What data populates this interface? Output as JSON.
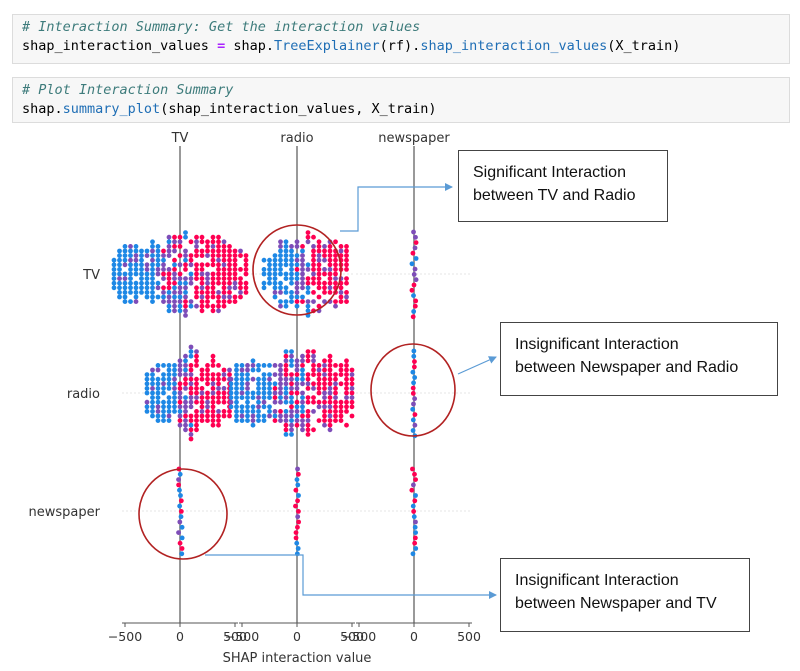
{
  "cells": [
    {
      "comment": "# Interaction Summary: Get the interaction values",
      "code": {
        "var": "shap_interaction_values",
        "op": "=",
        "mod": "shap.",
        "cls": "TreeExplainer",
        "arg1": "(rf).",
        "fn": "shap_interaction_values",
        "arg2": "(X_train)"
      }
    },
    {
      "comment": "# Plot Interaction Summary",
      "code": {
        "mod": "shap.",
        "fn": "summary_plot",
        "args": "(shap_interaction_values, X_train)"
      }
    }
  ],
  "chart_data": {
    "type": "scatter",
    "subtype": "shap-interaction-summary",
    "features": [
      "TV",
      "radio",
      "newspaper"
    ],
    "column_titles": [
      "TV",
      "radio",
      "newspaper"
    ],
    "row_labels": [
      "TV",
      "radio",
      "newspaper"
    ],
    "xlabel": "SHAP interaction value",
    "xticks": [
      -500,
      0,
      500
    ],
    "xtick_labels": [
      "−500",
      "0",
      "500"
    ],
    "xlim": [
      -700,
      700
    ],
    "color_low": "#1e88e5",
    "color_mid": "#7e4db8",
    "color_high": "#ff0052",
    "cells": [
      {
        "row": "TV",
        "col": "TV",
        "spread": [
          -600,
          600
        ],
        "density": "high"
      },
      {
        "row": "TV",
        "col": "radio",
        "spread": [
          -300,
          450
        ],
        "density": "high"
      },
      {
        "row": "TV",
        "col": "newspaper",
        "spread": [
          -20,
          20
        ],
        "density": "low"
      },
      {
        "row": "radio",
        "col": "TV",
        "spread": [
          -300,
          450
        ],
        "density": "high"
      },
      {
        "row": "radio",
        "col": "radio",
        "spread": [
          -600,
          500
        ],
        "density": "high"
      },
      {
        "row": "radio",
        "col": "newspaper",
        "spread": [
          -15,
          15
        ],
        "density": "low"
      },
      {
        "row": "newspaper",
        "col": "TV",
        "spread": [
          -20,
          20
        ],
        "density": "low"
      },
      {
        "row": "newspaper",
        "col": "radio",
        "spread": [
          -15,
          15
        ],
        "density": "low"
      },
      {
        "row": "newspaper",
        "col": "newspaper",
        "spread": [
          -20,
          20
        ],
        "density": "low"
      }
    ]
  },
  "annotations": [
    {
      "line1": "Significant Interaction",
      "line2": "between TV and Radio"
    },
    {
      "line1": "Insignificant Interaction",
      "line2": "between Newspaper and Radio"
    },
    {
      "line1": "Insignificant Interaction",
      "line2": "between Newspaper and TV"
    }
  ],
  "colors": {
    "circle": "#b22222",
    "arrow": "#5b9bd5",
    "axis": "#888888"
  }
}
